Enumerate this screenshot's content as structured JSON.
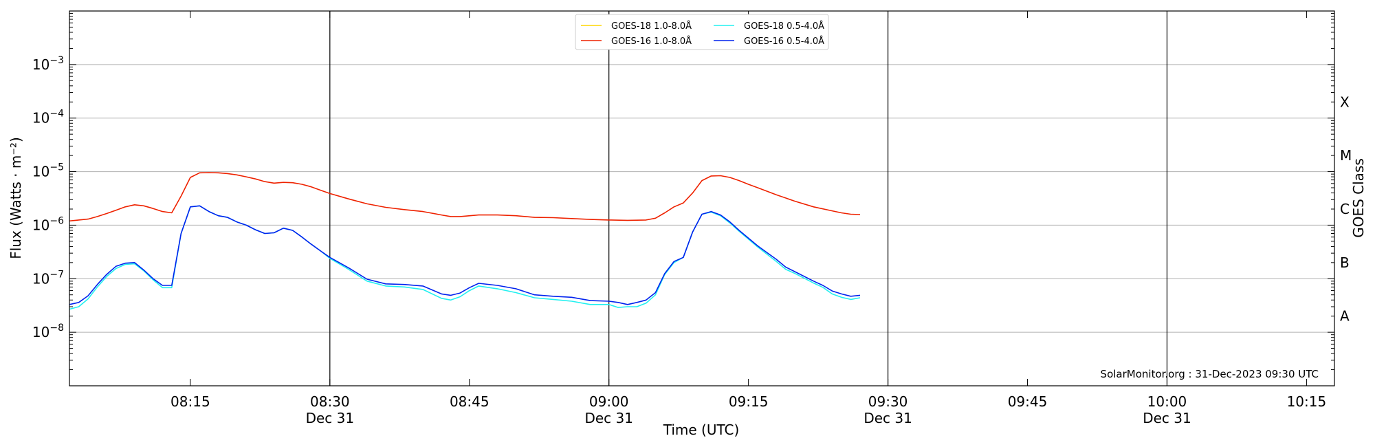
{
  "chart_data": {
    "type": "line",
    "xlabel": "Time (UTC)",
    "ylabel": "Flux (Watts · m⁻²)",
    "ylabel_right": "GOES Class",
    "credit": "SolarMonitor.org : 31-Dec-2023 09:30 UTC",
    "x_range": [
      "08:02",
      "10:18"
    ],
    "ylim": [
      1e-09,
      0.01
    ],
    "y_scale": "log",
    "grid": "horizontal",
    "legend_position": "top-center",
    "y_ticks": [
      {
        "value": 1e-08,
        "base": "10",
        "exp": "−8"
      },
      {
        "value": 1e-07,
        "base": "10",
        "exp": "−7"
      },
      {
        "value": 1e-06,
        "base": "10",
        "exp": "−6"
      },
      {
        "value": 1e-05,
        "base": "10",
        "exp": "−5"
      },
      {
        "value": 0.0001,
        "base": "10",
        "exp": "−4"
      },
      {
        "value": 0.001,
        "base": "10",
        "exp": "−3"
      }
    ],
    "x_ticks": [
      {
        "time": "08:15",
        "label": "08:15",
        "date": ""
      },
      {
        "time": "08:30",
        "label": "08:30",
        "date": "Dec 31"
      },
      {
        "time": "08:45",
        "label": "08:45",
        "date": ""
      },
      {
        "time": "09:00",
        "label": "09:00",
        "date": "Dec 31"
      },
      {
        "time": "09:15",
        "label": "09:15",
        "date": ""
      },
      {
        "time": "09:30",
        "label": "09:30",
        "date": "Dec 31"
      },
      {
        "time": "09:45",
        "label": "09:45",
        "date": ""
      },
      {
        "time": "10:00",
        "label": "10:00",
        "date": "Dec 31"
      },
      {
        "time": "10:15",
        "label": "10:15",
        "date": ""
      }
    ],
    "day_lines": [
      "08:30",
      "09:00",
      "09:30",
      "10:00"
    ],
    "goes_classes": [
      {
        "label": "X",
        "value": 0.0002
      },
      {
        "label": "M",
        "value": 2e-05
      },
      {
        "label": "C",
        "value": 2e-06
      },
      {
        "label": "B",
        "value": 2e-07
      },
      {
        "label": "A",
        "value": 2e-08
      }
    ],
    "series": [
      {
        "name": "GOES-18 1.0-8.0Å",
        "color": "#ffd700",
        "points": []
      },
      {
        "name": "GOES-16 1.0-8.0Å",
        "color": "#ee2200",
        "points": [
          [
            "08:02",
            1.2e-06
          ],
          [
            "08:03",
            1.25e-06
          ],
          [
            "08:04",
            1.3e-06
          ],
          [
            "08:05",
            1.45e-06
          ],
          [
            "08:06",
            1.65e-06
          ],
          [
            "08:07",
            1.9e-06
          ],
          [
            "08:08",
            2.2e-06
          ],
          [
            "08:09",
            2.4e-06
          ],
          [
            "08:10",
            2.3e-06
          ],
          [
            "08:11",
            2.05e-06
          ],
          [
            "08:12",
            1.8e-06
          ],
          [
            "08:13",
            1.7e-06
          ],
          [
            "08:14",
            3.5e-06
          ],
          [
            "08:15",
            7.8e-06
          ],
          [
            "08:16",
            9.5e-06
          ],
          [
            "08:17",
            9.6e-06
          ],
          [
            "08:18",
            9.5e-06
          ],
          [
            "08:19",
            9.2e-06
          ],
          [
            "08:20",
            8.7e-06
          ],
          [
            "08:21",
            8e-06
          ],
          [
            "08:22",
            7.3e-06
          ],
          [
            "08:23",
            6.5e-06
          ],
          [
            "08:24",
            6.1e-06
          ],
          [
            "08:25",
            6.3e-06
          ],
          [
            "08:26",
            6.2e-06
          ],
          [
            "08:27",
            5.8e-06
          ],
          [
            "08:28",
            5.2e-06
          ],
          [
            "08:29",
            4.5e-06
          ],
          [
            "08:30",
            3.9e-06
          ],
          [
            "08:32",
            3.1e-06
          ],
          [
            "08:34",
            2.5e-06
          ],
          [
            "08:36",
            2.15e-06
          ],
          [
            "08:38",
            1.95e-06
          ],
          [
            "08:40",
            1.8e-06
          ],
          [
            "08:42",
            1.55e-06
          ],
          [
            "08:43",
            1.45e-06
          ],
          [
            "08:44",
            1.45e-06
          ],
          [
            "08:46",
            1.55e-06
          ],
          [
            "08:48",
            1.55e-06
          ],
          [
            "08:50",
            1.5e-06
          ],
          [
            "08:52",
            1.4e-06
          ],
          [
            "08:54",
            1.38e-06
          ],
          [
            "08:56",
            1.33e-06
          ],
          [
            "08:58",
            1.28e-06
          ],
          [
            "09:00",
            1.25e-06
          ],
          [
            "09:02",
            1.23e-06
          ],
          [
            "09:04",
            1.25e-06
          ],
          [
            "09:05",
            1.35e-06
          ],
          [
            "09:06",
            1.7e-06
          ],
          [
            "09:07",
            2.2e-06
          ],
          [
            "09:08",
            2.6e-06
          ],
          [
            "09:09",
            4e-06
          ],
          [
            "09:10",
            6.8e-06
          ],
          [
            "09:11",
            8.3e-06
          ],
          [
            "09:12",
            8.4e-06
          ],
          [
            "09:13",
            7.8e-06
          ],
          [
            "09:14",
            6.8e-06
          ],
          [
            "09:15",
            5.8e-06
          ],
          [
            "09:16",
            5e-06
          ],
          [
            "09:18",
            3.7e-06
          ],
          [
            "09:20",
            2.8e-06
          ],
          [
            "09:22",
            2.2e-06
          ],
          [
            "09:24",
            1.85e-06
          ],
          [
            "09:25",
            1.7e-06
          ],
          [
            "09:26",
            1.6e-06
          ],
          [
            "09:27",
            1.58e-06
          ]
        ]
      },
      {
        "name": "GOES-18 0.5-4.0Å",
        "color": "#22f0f0",
        "points": [
          [
            "08:02",
            2.7e-08
          ],
          [
            "08:03",
            3e-08
          ],
          [
            "08:04",
            4.2e-08
          ],
          [
            "08:05",
            7e-08
          ],
          [
            "08:06",
            1.1e-07
          ],
          [
            "08:07",
            1.55e-07
          ],
          [
            "08:08",
            1.85e-07
          ],
          [
            "08:09",
            1.9e-07
          ],
          [
            "08:10",
            1.4e-07
          ],
          [
            "08:11",
            9.5e-08
          ],
          [
            "08:12",
            6.8e-08
          ],
          [
            "08:13",
            6.8e-08
          ],
          [
            "08:14",
            7e-07
          ],
          [
            "08:15",
            2.2e-06
          ],
          [
            "08:16",
            2.3e-06
          ],
          [
            "08:17",
            1.8e-06
          ],
          [
            "08:18",
            1.5e-06
          ],
          [
            "08:19",
            1.4e-06
          ],
          [
            "08:20",
            1.15e-06
          ],
          [
            "08:21",
            1e-06
          ],
          [
            "08:22",
            8.2e-07
          ],
          [
            "08:23",
            7e-07
          ],
          [
            "08:24",
            7.2e-07
          ],
          [
            "08:25",
            8.8e-07
          ],
          [
            "08:26",
            8e-07
          ],
          [
            "08:27",
            6e-07
          ],
          [
            "08:28",
            4.4e-07
          ],
          [
            "08:29",
            3.3e-07
          ],
          [
            "08:30",
            2.4e-07
          ],
          [
            "08:32",
            1.5e-07
          ],
          [
            "08:34",
            9e-08
          ],
          [
            "08:36",
            7.3e-08
          ],
          [
            "08:38",
            7e-08
          ],
          [
            "08:40",
            6.3e-08
          ],
          [
            "08:42",
            4.3e-08
          ],
          [
            "08:43",
            4e-08
          ],
          [
            "08:44",
            4.6e-08
          ],
          [
            "08:45",
            6e-08
          ],
          [
            "08:46",
            7.3e-08
          ],
          [
            "08:48",
            6.5e-08
          ],
          [
            "08:50",
            5.5e-08
          ],
          [
            "08:52",
            4.4e-08
          ],
          [
            "08:54",
            4.1e-08
          ],
          [
            "08:56",
            3.8e-08
          ],
          [
            "08:58",
            3.3e-08
          ],
          [
            "09:00",
            3.3e-08
          ],
          [
            "09:01",
            2.9e-08
          ],
          [
            "09:02",
            3e-08
          ],
          [
            "09:03",
            3e-08
          ],
          [
            "09:04",
            3.5e-08
          ],
          [
            "09:05",
            5e-08
          ],
          [
            "09:06",
            1.2e-07
          ],
          [
            "09:07",
            2e-07
          ],
          [
            "09:08",
            2.5e-07
          ],
          [
            "09:09",
            7.5e-07
          ],
          [
            "09:10",
            1.6e-06
          ],
          [
            "09:11",
            1.75e-06
          ],
          [
            "09:12",
            1.5e-06
          ],
          [
            "09:13",
            1.1e-06
          ],
          [
            "09:14",
            7.7e-07
          ],
          [
            "09:16",
            3.9e-07
          ],
          [
            "09:18",
            2.1e-07
          ],
          [
            "09:19",
            1.5e-07
          ],
          [
            "09:20",
            1.25e-07
          ],
          [
            "09:22",
            8.3e-08
          ],
          [
            "09:23",
            6.9e-08
          ],
          [
            "09:24",
            5.2e-08
          ],
          [
            "09:25",
            4.5e-08
          ],
          [
            "09:26",
            4.1e-08
          ],
          [
            "09:27",
            4.4e-08
          ]
        ]
      },
      {
        "name": "GOES-16 0.5-4.0Å",
        "color": "#0022ee",
        "points": [
          [
            "08:02",
            3.3e-08
          ],
          [
            "08:03",
            3.6e-08
          ],
          [
            "08:04",
            4.8e-08
          ],
          [
            "08:05",
            7.8e-08
          ],
          [
            "08:06",
            1.2e-07
          ],
          [
            "08:07",
            1.7e-07
          ],
          [
            "08:08",
            1.95e-07
          ],
          [
            "08:09",
            2e-07
          ],
          [
            "08:10",
            1.45e-07
          ],
          [
            "08:11",
            1e-07
          ],
          [
            "08:12",
            7.5e-08
          ],
          [
            "08:13",
            7.5e-08
          ],
          [
            "08:14",
            7e-07
          ],
          [
            "08:15",
            2.2e-06
          ],
          [
            "08:16",
            2.3e-06
          ],
          [
            "08:17",
            1.8e-06
          ],
          [
            "08:18",
            1.5e-06
          ],
          [
            "08:19",
            1.4e-06
          ],
          [
            "08:20",
            1.15e-06
          ],
          [
            "08:21",
            1e-06
          ],
          [
            "08:22",
            8.2e-07
          ],
          [
            "08:23",
            7e-07
          ],
          [
            "08:24",
            7.2e-07
          ],
          [
            "08:25",
            8.8e-07
          ],
          [
            "08:26",
            8e-07
          ],
          [
            "08:27",
            6e-07
          ],
          [
            "08:28",
            4.4e-07
          ],
          [
            "08:29",
            3.3e-07
          ],
          [
            "08:30",
            2.5e-07
          ],
          [
            "08:32",
            1.6e-07
          ],
          [
            "08:34",
            9.8e-08
          ],
          [
            "08:36",
            8e-08
          ],
          [
            "08:38",
            7.8e-08
          ],
          [
            "08:40",
            7.3e-08
          ],
          [
            "08:42",
            5.2e-08
          ],
          [
            "08:43",
            4.9e-08
          ],
          [
            "08:44",
            5.4e-08
          ],
          [
            "08:45",
            6.8e-08
          ],
          [
            "08:46",
            8.2e-08
          ],
          [
            "08:48",
            7.5e-08
          ],
          [
            "08:50",
            6.5e-08
          ],
          [
            "08:52",
            5e-08
          ],
          [
            "08:54",
            4.7e-08
          ],
          [
            "08:56",
            4.5e-08
          ],
          [
            "08:58",
            3.9e-08
          ],
          [
            "09:00",
            3.8e-08
          ],
          [
            "09:01",
            3.6e-08
          ],
          [
            "09:02",
            3.3e-08
          ],
          [
            "09:03",
            3.6e-08
          ],
          [
            "09:04",
            4e-08
          ],
          [
            "09:05",
            5.5e-08
          ],
          [
            "09:06",
            1.25e-07
          ],
          [
            "09:07",
            2.1e-07
          ],
          [
            "09:08",
            2.5e-07
          ],
          [
            "09:09",
            7.5e-07
          ],
          [
            "09:10",
            1.6e-06
          ],
          [
            "09:11",
            1.8e-06
          ],
          [
            "09:12",
            1.55e-06
          ],
          [
            "09:13",
            1.15e-06
          ],
          [
            "09:14",
            8e-07
          ],
          [
            "09:16",
            4.1e-07
          ],
          [
            "09:18",
            2.3e-07
          ],
          [
            "09:19",
            1.65e-07
          ],
          [
            "09:20",
            1.35e-07
          ],
          [
            "09:22",
            9e-08
          ],
          [
            "09:23",
            7.5e-08
          ],
          [
            "09:24",
            5.9e-08
          ],
          [
            "09:25",
            5.2e-08
          ],
          [
            "09:26",
            4.7e-08
          ],
          [
            "09:27",
            4.9e-08
          ]
        ]
      }
    ]
  }
}
